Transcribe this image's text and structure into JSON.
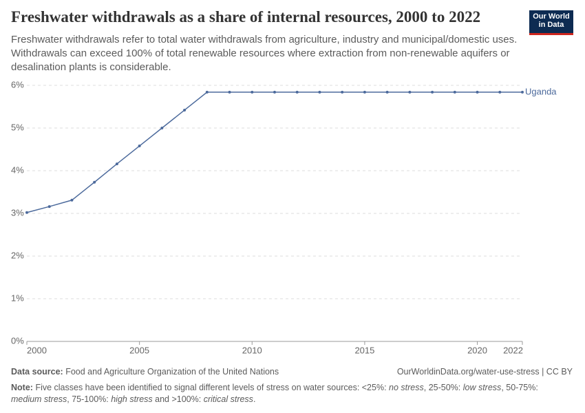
{
  "chart_data": {
    "type": "line",
    "title": "Freshwater withdrawals as a share of internal resources, 2000 to 2022",
    "subtitle": "Freshwater withdrawals refer to total water withdrawals from agriculture, industry and municipal/domestic uses. Withdrawals can exceed 100% of total renewable resources where extraction from non-renewable aquifers or desalination plants is considerable.",
    "logo": [
      "Our World",
      "in Data"
    ],
    "x": [
      2000,
      2001,
      2002,
      2003,
      2004,
      2005,
      2006,
      2007,
      2008,
      2009,
      2010,
      2011,
      2012,
      2013,
      2014,
      2015,
      2016,
      2017,
      2018,
      2019,
      2020,
      2021,
      2022
    ],
    "series": [
      {
        "name": "Uganda",
        "color": "#4c6a9c",
        "values": [
          3.02,
          3.16,
          3.31,
          3.73,
          4.16,
          4.58,
          5.0,
          5.42,
          5.84,
          5.84,
          5.84,
          5.84,
          5.84,
          5.84,
          5.84,
          5.84,
          5.84,
          5.84,
          5.84,
          5.84,
          5.84,
          5.84,
          5.84
        ]
      }
    ],
    "xlim": [
      2000,
      2022
    ],
    "xticks": [
      2000,
      2005,
      2010,
      2015,
      2020,
      2022
    ],
    "ylim": [
      0,
      6
    ],
    "yticks": [
      {
        "value": 0,
        "label": "0%"
      },
      {
        "value": 1,
        "label": "1%"
      },
      {
        "value": 2,
        "label": "2%"
      },
      {
        "value": 3,
        "label": "3%"
      },
      {
        "value": 4,
        "label": "4%"
      },
      {
        "value": 5,
        "label": "5%"
      },
      {
        "value": 6,
        "label": "6%"
      }
    ],
    "grid": true,
    "source_label": "Data source:",
    "source": "Food and Agriculture Organization of the United Nations",
    "url": "OurWorldinData.org/water-use-stress | CC BY",
    "note_label": "Note:",
    "note": [
      "Five classes have been identified to signal different levels of stress on water sources: <25%: ",
      "no stress",
      ", 25-50%: ",
      "low stress",
      ", 50-75%: ",
      "medium stress",
      ", 75-100%: ",
      "high stress",
      " and >100%: ",
      "critical stress",
      "."
    ]
  }
}
